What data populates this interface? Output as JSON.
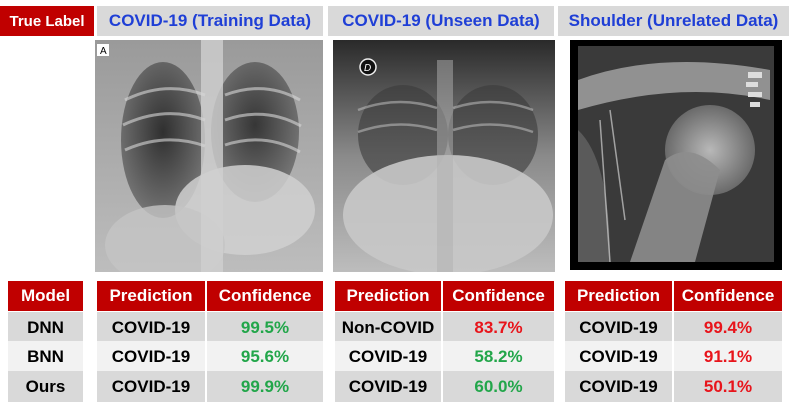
{
  "header": {
    "true_label": "True Label",
    "columns": [
      "COVID-19 (Training Data)",
      "COVID-19 (Unseen Data)",
      "Shoulder (Unrelated Data)"
    ]
  },
  "images": {
    "img1_marker": "A",
    "img2_marker": "D"
  },
  "table": {
    "model_header": "Model",
    "prediction_header": "Prediction",
    "confidence_header": "Confidence",
    "models": [
      "DNN",
      "BNN",
      "Ours"
    ],
    "groups": [
      {
        "rows": [
          {
            "prediction": "COVID-19",
            "confidence": "99.5%"
          },
          {
            "prediction": "COVID-19",
            "confidence": "95.6%"
          },
          {
            "prediction": "COVID-19",
            "confidence": "99.9%"
          }
        ]
      },
      {
        "rows": [
          {
            "prediction": "Non-COVID",
            "confidence": "83.7%"
          },
          {
            "prediction": "COVID-19",
            "confidence": "58.2%"
          },
          {
            "prediction": "COVID-19",
            "confidence": "60.0%"
          }
        ]
      },
      {
        "rows": [
          {
            "prediction": "COVID-19",
            "confidence": "99.4%"
          },
          {
            "prediction": "COVID-19",
            "confidence": "91.1%"
          },
          {
            "prediction": "COVID-19",
            "confidence": "50.1%"
          }
        ]
      }
    ]
  },
  "colors": {
    "header_red": "#c00000",
    "header_blue_text": "#1f3fd6",
    "confidence_green": "#22a64a",
    "confidence_red": "#e8141b"
  }
}
